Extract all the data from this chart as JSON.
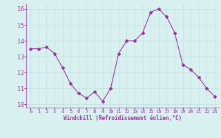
{
  "x": [
    0,
    1,
    2,
    3,
    4,
    5,
    6,
    7,
    8,
    9,
    10,
    11,
    12,
    13,
    14,
    15,
    16,
    17,
    18,
    19,
    20,
    21,
    22,
    23
  ],
  "y": [
    13.5,
    13.5,
    13.6,
    13.2,
    12.3,
    11.3,
    10.7,
    10.4,
    10.8,
    10.2,
    11.0,
    13.2,
    14.0,
    14.0,
    14.5,
    15.8,
    16.0,
    15.5,
    14.5,
    12.5,
    12.2,
    11.7,
    11.0,
    10.5
  ],
  "line_color": "#993399",
  "marker": "D",
  "marker_size": 2,
  "bg_color": "#d8f0f0",
  "grid_color": "#b8d8d8",
  "xlabel": "Windchill (Refroidissement éolien,°C)",
  "xlabel_color": "#993399",
  "tick_color": "#993399",
  "ylim": [
    9.8,
    16.3
  ],
  "xlim": [
    -0.5,
    23.5
  ],
  "yticks": [
    10,
    11,
    12,
    13,
    14,
    15,
    16
  ],
  "xticks": [
    0,
    1,
    2,
    3,
    4,
    5,
    6,
    7,
    8,
    9,
    10,
    11,
    12,
    13,
    14,
    15,
    16,
    17,
    18,
    19,
    20,
    21,
    22,
    23
  ]
}
